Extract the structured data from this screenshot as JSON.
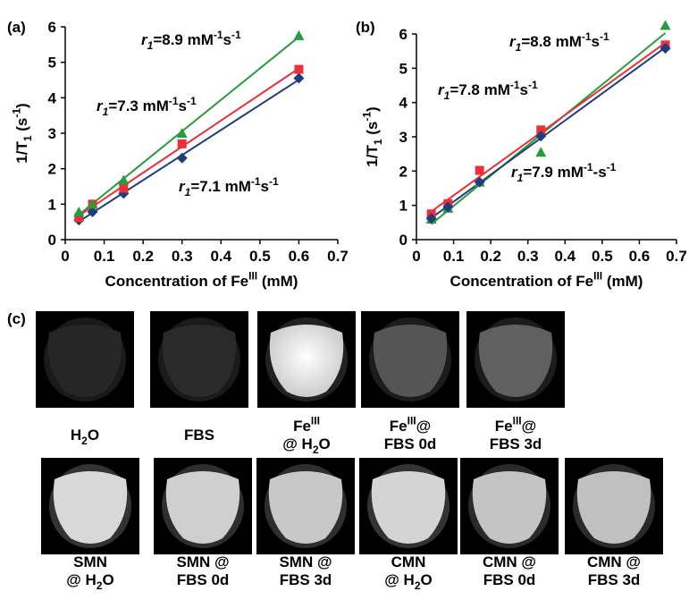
{
  "chart_data": [
    {
      "type": "scatter",
      "panel_label": "(a)",
      "x_label": [
        {
          "text": "Concentration of Fe"
        },
        {
          "text": "III",
          "pos": "sup"
        },
        {
          "text": " (mM)"
        }
      ],
      "y_label": [
        {
          "text": "1/T"
        },
        {
          "text": "1",
          "pos": "sub"
        },
        {
          "text": " (s"
        },
        {
          "text": "-1",
          "pos": "sup"
        },
        {
          "text": ")"
        }
      ],
      "x": [
        0.035,
        0.07,
        0.15,
        0.3,
        0.6
      ],
      "series": [
        {
          "color": "#1f3d7a",
          "marker": "diamond",
          "fit": true,
          "values": [
            0.55,
            0.78,
            1.3,
            2.3,
            4.55
          ]
        },
        {
          "color": "#e8313a",
          "marker": "square",
          "fit": true,
          "values": [
            0.62,
            1.0,
            1.45,
            2.7,
            4.8
          ]
        },
        {
          "color": "#2a9a3e",
          "marker": "triangle",
          "fit": true,
          "values": [
            0.78,
            1.0,
            1.68,
            3.0,
            5.75
          ]
        }
      ],
      "annotations": [
        {
          "color": "#2a9a3e",
          "parts": [
            {
              "text": "r",
              "italic": true
            },
            {
              "text": "1",
              "pos": "sub",
              "italic": true
            },
            {
              "text": "=8.9 mM"
            },
            {
              "text": "-1",
              "pos": "sup"
            },
            {
              "text": "s"
            },
            {
              "text": "-1",
              "pos": "sup"
            }
          ]
        },
        {
          "color": "#e8313a",
          "parts": [
            {
              "text": "r",
              "italic": true
            },
            {
              "text": "1",
              "pos": "sub",
              "italic": true
            },
            {
              "text": "=7.3 mM"
            },
            {
              "text": "-1",
              "pos": "sup"
            },
            {
              "text": "s"
            },
            {
              "text": "-1",
              "pos": "sup"
            }
          ]
        },
        {
          "color": "#1f3d7a",
          "parts": [
            {
              "text": "r",
              "italic": true
            },
            {
              "text": "1",
              "pos": "sub",
              "italic": true
            },
            {
              "text": "=7.1 mM"
            },
            {
              "text": "-1",
              "pos": "sup"
            },
            {
              "text": "s"
            },
            {
              "text": "-1",
              "pos": "sup"
            }
          ]
        }
      ],
      "xlim": [
        0,
        0.7
      ],
      "xticks": [
        0,
        0.1,
        0.2,
        0.3,
        0.4,
        0.5,
        0.6,
        0.7
      ],
      "ylim": [
        0,
        6
      ],
      "yticks": [
        0,
        1,
        2,
        3,
        4,
        5,
        6
      ]
    },
    {
      "type": "scatter",
      "panel_label": "(b)",
      "x_label": [
        {
          "text": "Concentration of Fe"
        },
        {
          "text": "III",
          "pos": "sup"
        },
        {
          "text": " (mM)"
        }
      ],
      "y_label": [
        {
          "text": "1/T"
        },
        {
          "text": "1",
          "pos": "sub"
        },
        {
          "text": " (s"
        },
        {
          "text": "-1",
          "pos": "sup"
        },
        {
          "text": ")"
        }
      ],
      "x": [
        0.04,
        0.085,
        0.17,
        0.335,
        0.67
      ],
      "series": [
        {
          "color": "#2a9a3e",
          "marker": "triangle",
          "fit": true,
          "values": [
            0.6,
            0.92,
            1.68,
            2.55,
            6.25
          ]
        },
        {
          "color": "#e8313a",
          "marker": "square",
          "fit": true,
          "values": [
            0.75,
            1.05,
            2.02,
            3.2,
            5.68
          ]
        },
        {
          "color": "#1f3d7a",
          "marker": "diamond",
          "fit": true,
          "values": [
            0.62,
            0.95,
            1.68,
            3.02,
            5.58
          ]
        }
      ],
      "annotations": [
        {
          "color": "#2a9a3e",
          "parts": [
            {
              "text": "r",
              "italic": true
            },
            {
              "text": "1",
              "pos": "sub",
              "italic": true
            },
            {
              "text": "=8.8 mM"
            },
            {
              "text": "-1",
              "pos": "sup"
            },
            {
              "text": "s"
            },
            {
              "text": "-1",
              "pos": "sup"
            }
          ]
        },
        {
          "color": "#e8313a",
          "parts": [
            {
              "text": "r",
              "italic": true
            },
            {
              "text": "1",
              "pos": "sub",
              "italic": true
            },
            {
              "text": "=7.8 mM"
            },
            {
              "text": "-1",
              "pos": "sup"
            },
            {
              "text": "s"
            },
            {
              "text": "-1",
              "pos": "sup"
            }
          ]
        },
        {
          "color": "#1f3d7a",
          "parts": [
            {
              "text": "r",
              "italic": true
            },
            {
              "text": "1",
              "pos": "sub",
              "italic": true
            },
            {
              "text": "=7.9 mM"
            },
            {
              "text": "-1",
              "pos": "sup"
            },
            {
              "text": "-s"
            },
            {
              "text": "-1",
              "pos": "sup"
            }
          ]
        }
      ],
      "xlim": [
        0,
        0.7
      ],
      "xticks": [
        0,
        0.1,
        0.2,
        0.3,
        0.4,
        0.5,
        0.6,
        0.7
      ],
      "ylim": [
        0,
        6
      ],
      "yticks": [
        0,
        1,
        2,
        3,
        4,
        5,
        6
      ]
    }
  ],
  "images": {
    "panel_label": "(c)",
    "rows": [
      [
        {
          "lines": [
            [
              {
                "text": "H"
              },
              {
                "text": "2",
                "pos": "sub"
              },
              {
                "text": "O"
              }
            ]
          ]
        },
        {
          "lines": [
            [
              {
                "text": "FBS"
              }
            ]
          ]
        },
        {
          "lines": [
            [
              {
                "text": "Fe"
              },
              {
                "text": "III",
                "pos": "sup"
              }
            ],
            [
              {
                "text": "@ H"
              },
              {
                "text": "2",
                "pos": "sub"
              },
              {
                "text": "O"
              }
            ]
          ]
        },
        {
          "lines": [
            [
              {
                "text": "Fe"
              },
              {
                "text": "III",
                "pos": "sup"
              },
              {
                "text": "@"
              }
            ],
            [
              {
                "text": "FBS 0d"
              }
            ]
          ]
        },
        {
          "lines": [
            [
              {
                "text": "Fe"
              },
              {
                "text": "III",
                "pos": "sup"
              },
              {
                "text": "@"
              }
            ],
            [
              {
                "text": "FBS 3d"
              }
            ]
          ]
        }
      ],
      [
        {
          "lines": [
            [
              {
                "text": "SMN"
              }
            ],
            [
              {
                "text": "@ H"
              },
              {
                "text": "2",
                "pos": "sub"
              },
              {
                "text": "O"
              }
            ]
          ]
        },
        {
          "lines": [
            [
              {
                "text": "SMN @"
              }
            ],
            [
              {
                "text": "FBS 0d"
              }
            ]
          ]
        },
        {
          "lines": [
            [
              {
                "text": "SMN @"
              }
            ],
            [
              {
                "text": "FBS 3d"
              }
            ]
          ]
        },
        {
          "lines": [
            [
              {
                "text": "CMN"
              }
            ],
            [
              {
                "text": "@ H"
              },
              {
                "text": "2",
                "pos": "sub"
              },
              {
                "text": "O"
              }
            ]
          ]
        },
        {
          "lines": [
            [
              {
                "text": "CMN @"
              }
            ],
            [
              {
                "text": "FBS 0d"
              }
            ]
          ]
        },
        {
          "lines": [
            [
              {
                "text": "CMN @"
              }
            ],
            [
              {
                "text": "FBS 3d"
              }
            ]
          ]
        }
      ]
    ]
  }
}
